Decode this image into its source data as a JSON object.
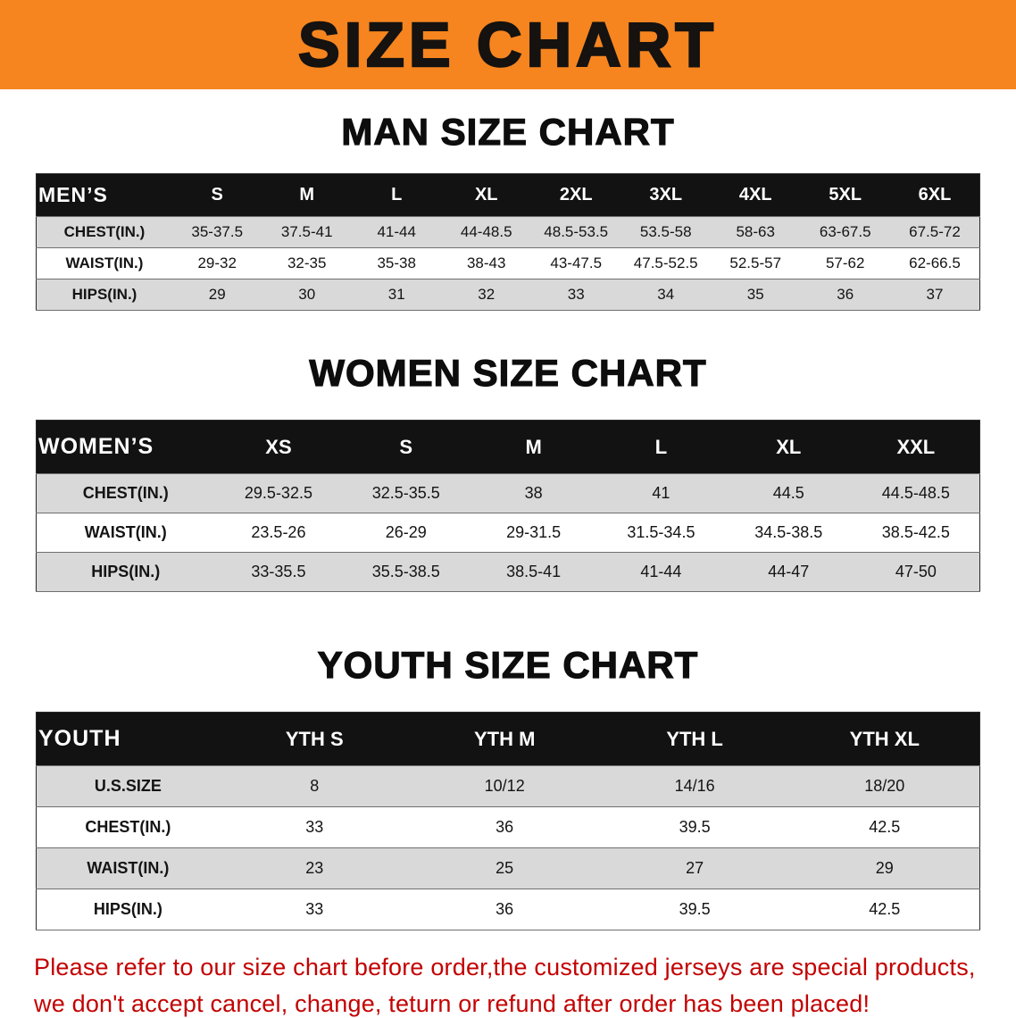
{
  "banner": {
    "title": "SIZE CHART",
    "background_color": "#f6851f",
    "text_color": "#151210"
  },
  "colors": {
    "header_row_bg": "#121212",
    "header_row_text": "#ffffff",
    "alt_row_bg": "#d9d9d9",
    "disclaimer_text": "#c30202"
  },
  "sections": [
    {
      "heading": "MAN SIZE CHART",
      "table": {
        "corner": "MEN’S",
        "columns": [
          "S",
          "M",
          "L",
          "XL",
          "2XL",
          "3XL",
          "4XL",
          "5XL",
          "6XL"
        ],
        "rows": [
          {
            "label": "CHEST(IN.)",
            "values": [
              "35-37.5",
              "37.5-41",
              "41-44",
              "44-48.5",
              "48.5-53.5",
              "53.5-58",
              "58-63",
              "63-67.5",
              "67.5-72"
            ]
          },
          {
            "label": "WAIST(IN.)",
            "values": [
              "29-32",
              "32-35",
              "35-38",
              "38-43",
              "43-47.5",
              "47.5-52.5",
              "52.5-57",
              "57-62",
              "62-66.5"
            ]
          },
          {
            "label": "HIPS(IN.)",
            "values": [
              "29",
              "30",
              "31",
              "32",
              "33",
              "34",
              "35",
              "36",
              "37"
            ]
          }
        ]
      }
    },
    {
      "heading": "WOMEN SIZE CHART",
      "table": {
        "corner": "WOMEN’S",
        "columns": [
          "XS",
          "S",
          "M",
          "L",
          "XL",
          "XXL"
        ],
        "rows": [
          {
            "label": "CHEST(IN.)",
            "values": [
              "29.5-32.5",
              "32.5-35.5",
              "38",
              "41",
              "44.5",
              "44.5-48.5"
            ]
          },
          {
            "label": "WAIST(IN.)",
            "values": [
              "23.5-26",
              "26-29",
              "29-31.5",
              "31.5-34.5",
              "34.5-38.5",
              "38.5-42.5"
            ]
          },
          {
            "label": "HIPS(IN.)",
            "values": [
              "33-35.5",
              "35.5-38.5",
              "38.5-41",
              "41-44",
              "44-47",
              "47-50"
            ]
          }
        ]
      }
    },
    {
      "heading": "YOUTH SIZE CHART",
      "table": {
        "corner": "YOUTH",
        "columns": [
          "YTH S",
          "YTH M",
          "YTH L",
          "YTH XL"
        ],
        "rows": [
          {
            "label": "U.S.SIZE",
            "values": [
              "8",
              "10/12",
              "14/16",
              "18/20"
            ]
          },
          {
            "label": "CHEST(IN.)",
            "values": [
              "33",
              "36",
              "39.5",
              "42.5"
            ]
          },
          {
            "label": "WAIST(IN.)",
            "values": [
              "23",
              "25",
              "27",
              "29"
            ]
          },
          {
            "label": "HIPS(IN.)",
            "values": [
              "33",
              "36",
              "39.5",
              "42.5"
            ]
          }
        ]
      }
    }
  ],
  "footer": {
    "line1": "Please refer to our size chart before order,the customized jerseys are special products,",
    "line2": "we don't accept cancel, change, teturn or refund after order has been placed!"
  }
}
